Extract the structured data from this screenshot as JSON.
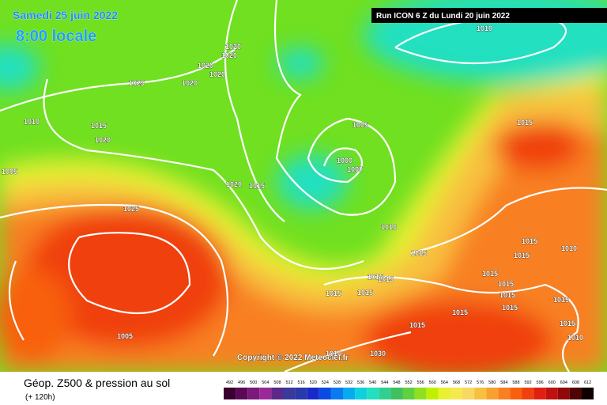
{
  "header": {
    "date": "Samedi 25 juin 2022",
    "time": "8:00 locale",
    "run": "Run ICON 6 Z du Lundi 20 juin 2022"
  },
  "copyright": "Copyright © 2022 Meteociel.fr",
  "isobar_labels": [
    "1020",
    "1020",
    "1020",
    "1020",
    "1020",
    "1025",
    "1010",
    "1010",
    "1015",
    "1020",
    "1005",
    "1005",
    "1000",
    "1000",
    "1020",
    "1015",
    "1025",
    "1010",
    "1015",
    "1015",
    "1015",
    "1015",
    "1010",
    "1015",
    "1015",
    "1015",
    "1015",
    "1015",
    "1015",
    "1015",
    "1015",
    "1015",
    "1015",
    "1015",
    "1010",
    "1005",
    "1030",
    "1010",
    "1015"
  ],
  "footer": {
    "title": "Géop. Z500 & pression au sol",
    "lead": "(+ 120h)"
  },
  "legend": {
    "levels": [
      492,
      496,
      500,
      504,
      508,
      512,
      516,
      520,
      524,
      528,
      532,
      536,
      540,
      544,
      548,
      552,
      556,
      560,
      564,
      568,
      572,
      576,
      580,
      584,
      588,
      592,
      596,
      600,
      604,
      608,
      612
    ],
    "colors": [
      "#3a0030",
      "#5a0a55",
      "#7a1a7a",
      "#9a2a9a",
      "#5a2a8a",
      "#3a3a9a",
      "#2a3aaa",
      "#1a2aca",
      "#0a4ae0",
      "#0a7af0",
      "#0aaaf0",
      "#10d0e0",
      "#20e0c0",
      "#30d090",
      "#40c060",
      "#60d040",
      "#90e020",
      "#c0f000",
      "#e8f030",
      "#f8e850",
      "#f8d860",
      "#f8c040",
      "#f8a030",
      "#f88020",
      "#f86010",
      "#f04010",
      "#e02010",
      "#c01010",
      "#900808",
      "#500404",
      "#100000"
    ]
  }
}
